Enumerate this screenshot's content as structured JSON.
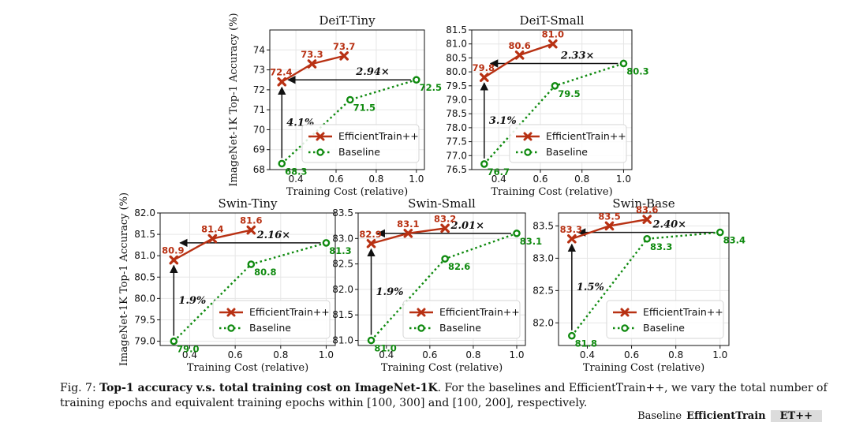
{
  "figure": {
    "caption_prefix": "Fig. 7: ",
    "caption_bold": "Top-1 accuracy v.s. total training cost on ImageNet-1K",
    "caption_rest": ". For the baselines and EfficientTrain++, we vary the total number of training epochs and equivalent training epochs within [100, 300] and [100, 200], respectively.",
    "footer": {
      "baseline": "Baseline",
      "efficienttrain": "EfficientTrain",
      "etpp": "ET++"
    }
  },
  "colors": {
    "efficient": "#b83113",
    "baseline": "#0f8a0f",
    "grid": "#e6e6e6",
    "arrow": "#111111"
  },
  "chart_data": [
    {
      "type": "line",
      "title": "DeiT-Tiny",
      "xlabel": "Training Cost (relative)",
      "ylabel": "ImageNet-1K Top-1 Accuracy (%)",
      "xlim": [
        0.27,
        1.04
      ],
      "ylim": [
        68,
        75
      ],
      "xticks": [
        0.4,
        0.6,
        0.8,
        1.0
      ],
      "xtick_labels": [
        "0.4",
        "0.6",
        "0.8",
        "1.0"
      ],
      "yticks": [
        68,
        69,
        70,
        71,
        72,
        73,
        74
      ],
      "ytick_labels": [
        "68",
        "69",
        "70",
        "71",
        "72",
        "73",
        "74"
      ],
      "series": [
        {
          "name": "EfficientTrain++",
          "x": [
            0.33,
            0.48,
            0.64
          ],
          "y": [
            72.4,
            73.3,
            73.7
          ],
          "labels": [
            "72.4",
            "73.3",
            "73.7"
          ]
        },
        {
          "name": "Baseline",
          "x": [
            0.33,
            0.67,
            1.0
          ],
          "y": [
            68.3,
            71.5,
            72.5
          ],
          "labels": [
            "68.3",
            "71.5",
            "72.5"
          ]
        }
      ],
      "speedup": "2.94×",
      "gain": "4.1%",
      "legend": "lower right"
    },
    {
      "type": "line",
      "title": "DeiT-Small",
      "xlabel": "Training Cost (relative)",
      "ylabel": "",
      "xlim": [
        0.27,
        1.04
      ],
      "ylim": [
        76.5,
        81.5
      ],
      "xticks": [
        0.4,
        0.6,
        0.8,
        1.0
      ],
      "xtick_labels": [
        "0.4",
        "0.6",
        "0.8",
        "1.0"
      ],
      "yticks": [
        76.5,
        77.0,
        77.5,
        78.0,
        78.5,
        79.0,
        79.5,
        80.0,
        80.5,
        81.0,
        81.5
      ],
      "ytick_labels": [
        "76.5",
        "77.0",
        "77.5",
        "78.0",
        "78.5",
        "79.0",
        "79.5",
        "80.0",
        "80.5",
        "81.0",
        "81.5"
      ],
      "series": [
        {
          "name": "EfficientTrain++",
          "x": [
            0.33,
            0.5,
            0.66
          ],
          "y": [
            79.8,
            80.6,
            81.0
          ],
          "labels": [
            "79.8",
            "80.6",
            "81.0"
          ]
        },
        {
          "name": "Baseline",
          "x": [
            0.33,
            0.67,
            1.0
          ],
          "y": [
            76.7,
            79.5,
            80.3
          ],
          "labels": [
            "76.7",
            "79.5",
            "80.3"
          ]
        }
      ],
      "speedup": "2.33×",
      "gain": "3.1%",
      "legend": "lower right"
    },
    {
      "type": "line",
      "title": "Swin-Tiny",
      "xlabel": "Training Cost (relative)",
      "ylabel": "ImageNet-1K Top-1 Accuracy (%)",
      "xlim": [
        0.27,
        1.04
      ],
      "ylim": [
        78.9,
        82.0
      ],
      "xticks": [
        0.4,
        0.6,
        0.8,
        1.0
      ],
      "xtick_labels": [
        "0.4",
        "0.6",
        "0.8",
        "1.0"
      ],
      "yticks": [
        79.0,
        79.5,
        80.0,
        80.5,
        81.0,
        81.5,
        82.0
      ],
      "ytick_labels": [
        "79.0",
        "79.5",
        "80.0",
        "80.5",
        "81.0",
        "81.5",
        "82.0"
      ],
      "series": [
        {
          "name": "EfficientTrain++",
          "x": [
            0.33,
            0.5,
            0.67
          ],
          "y": [
            80.9,
            81.4,
            81.6
          ],
          "labels": [
            "80.9",
            "81.4",
            "81.6"
          ]
        },
        {
          "name": "Baseline",
          "x": [
            0.33,
            0.67,
            1.0
          ],
          "y": [
            79.0,
            80.8,
            81.3
          ],
          "labels": [
            "79.0",
            "80.8",
            "81.3"
          ]
        }
      ],
      "speedup": "2.16×",
      "gain": "1.9%",
      "legend": "lower right"
    },
    {
      "type": "line",
      "title": "Swin-Small",
      "xlabel": "Training Cost (relative)",
      "ylabel": "",
      "xlim": [
        0.27,
        1.04
      ],
      "ylim": [
        80.9,
        83.5
      ],
      "xticks": [
        0.4,
        0.6,
        0.8,
        1.0
      ],
      "xtick_labels": [
        "0.4",
        "0.6",
        "0.8",
        "1.0"
      ],
      "yticks": [
        81.0,
        81.5,
        82.0,
        82.5,
        83.0,
        83.5
      ],
      "ytick_labels": [
        "81.0",
        "81.5",
        "82.0",
        "82.5",
        "83.0",
        "83.5"
      ],
      "series": [
        {
          "name": "EfficientTrain++",
          "x": [
            0.33,
            0.5,
            0.67
          ],
          "y": [
            82.9,
            83.1,
            83.2
          ],
          "labels": [
            "82.9",
            "83.1",
            "83.2"
          ]
        },
        {
          "name": "Baseline",
          "x": [
            0.33,
            0.67,
            1.0
          ],
          "y": [
            81.0,
            82.6,
            83.1
          ],
          "labels": [
            "81.0",
            "82.6",
            "83.1"
          ]
        }
      ],
      "speedup": "2.01×",
      "gain": "1.9%",
      "legend": "lower right"
    },
    {
      "type": "line",
      "title": "Swin-Base",
      "xlabel": "Training Cost (relative)",
      "ylabel": "",
      "xlim": [
        0.27,
        1.04
      ],
      "ylim": [
        81.65,
        83.7
      ],
      "xticks": [
        0.4,
        0.6,
        0.8,
        1.0
      ],
      "xtick_labels": [
        "0.4",
        "0.6",
        "0.8",
        "1.0"
      ],
      "yticks": [
        82.0,
        82.5,
        83.0,
        83.5
      ],
      "ytick_labels": [
        "82.0",
        "82.5",
        "83.0",
        "83.5"
      ],
      "series": [
        {
          "name": "EfficientTrain++",
          "x": [
            0.33,
            0.5,
            0.67
          ],
          "y": [
            83.3,
            83.5,
            83.6
          ],
          "labels": [
            "83.3",
            "83.5",
            "83.6"
          ]
        },
        {
          "name": "Baseline",
          "x": [
            0.33,
            0.67,
            1.0
          ],
          "y": [
            81.8,
            83.3,
            83.4
          ],
          "labels": [
            "81.8",
            "83.3",
            "83.4"
          ]
        }
      ],
      "speedup": "2.40×",
      "gain": "1.5%",
      "legend": "lower right"
    }
  ]
}
